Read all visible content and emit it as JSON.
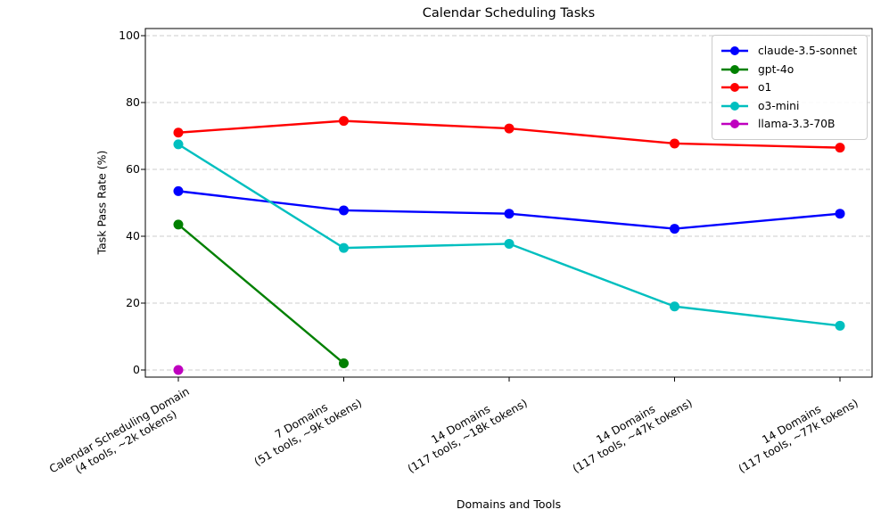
{
  "chart_data": {
    "type": "line",
    "title": "Calendar Scheduling Tasks",
    "xlabel": "Domains and Tools",
    "ylabel": "Task Pass Rate (%)",
    "ylim": [
      0,
      100
    ],
    "yticks": [
      0,
      20,
      40,
      60,
      80,
      100
    ],
    "grid": "horizontal dashed lightgray",
    "legend_position": "upper right",
    "marker": "circle",
    "categories": [
      [
        "Calendar Scheduling Domain",
        "(4 tools, ~2k tokens)"
      ],
      [
        "7 Domains",
        "(51 tools, ~9k tokens)"
      ],
      [
        "14 Domains",
        "(117 tools, ~18k tokens)"
      ],
      [
        "14 Domains",
        "(117 tools, ~47k tokens)"
      ],
      [
        "14 Domains",
        "(117 tools, ~77k tokens)"
      ]
    ],
    "series": [
      {
        "name": "claude-3.5-sonnet",
        "color": "#0000FF",
        "values": [
          53.5,
          47.75,
          46.75,
          42.25,
          46.75
        ]
      },
      {
        "name": "gpt-4o",
        "color": "#008000",
        "values": [
          43.5,
          2,
          null,
          null,
          null
        ]
      },
      {
        "name": "o1",
        "color": "#FF0000",
        "values": [
          71,
          74.5,
          72.25,
          67.75,
          66.5
        ]
      },
      {
        "name": "o3-mini",
        "color": "#00BFBF",
        "values": [
          67.5,
          36.5,
          37.75,
          19,
          13.25
        ]
      },
      {
        "name": "llama-3.3-70B",
        "color": "#BF00BF",
        "values": [
          0,
          null,
          null,
          null,
          null
        ]
      }
    ]
  }
}
